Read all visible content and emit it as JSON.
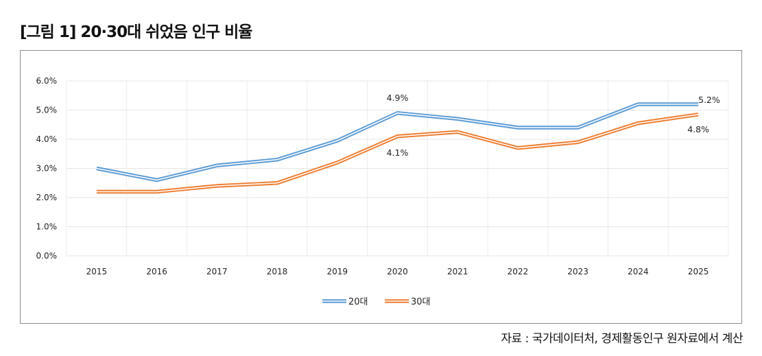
{
  "figure": {
    "title": "[그림 1]  20·30대 쉬었음 인구 비율",
    "source": "자료 : 국가데이터처, 경제활동인구 원자료에서 계산"
  },
  "chart_data": {
    "type": "line",
    "title": "20·30대 쉬었음 인구 비율",
    "xlabel": "",
    "ylabel": "",
    "categories": [
      "2015",
      "2016",
      "2017",
      "2018",
      "2019",
      "2020",
      "2021",
      "2022",
      "2023",
      "2024",
      "2025"
    ],
    "ylim": [
      0,
      6
    ],
    "yticks": [
      0,
      1,
      2,
      3,
      4,
      5,
      6
    ],
    "ytick_labels": [
      "0.0%",
      "1.0%",
      "2.0%",
      "3.0%",
      "4.0%",
      "5.0%",
      "6.0%"
    ],
    "grid": true,
    "legend_position": "bottom",
    "series": [
      {
        "name": "20대",
        "color": "#5b9bd5",
        "values": [
          3.0,
          2.6,
          3.1,
          3.3,
          3.95,
          4.9,
          4.7,
          4.4,
          4.4,
          5.2,
          5.2
        ]
      },
      {
        "name": "30대",
        "color": "#ed7d31",
        "values": [
          2.2,
          2.2,
          2.4,
          2.5,
          3.2,
          4.1,
          4.25,
          3.7,
          3.9,
          4.55,
          4.85
        ]
      }
    ],
    "annotations": [
      {
        "series": 0,
        "index": 5,
        "text": "4.9%",
        "position": "above"
      },
      {
        "series": 1,
        "index": 5,
        "text": "4.1%",
        "position": "below"
      },
      {
        "series": 0,
        "index": 10,
        "text": "5.2%",
        "position": "right"
      },
      {
        "series": 1,
        "index": 10,
        "text": "4.8%",
        "position": "below"
      }
    ]
  }
}
